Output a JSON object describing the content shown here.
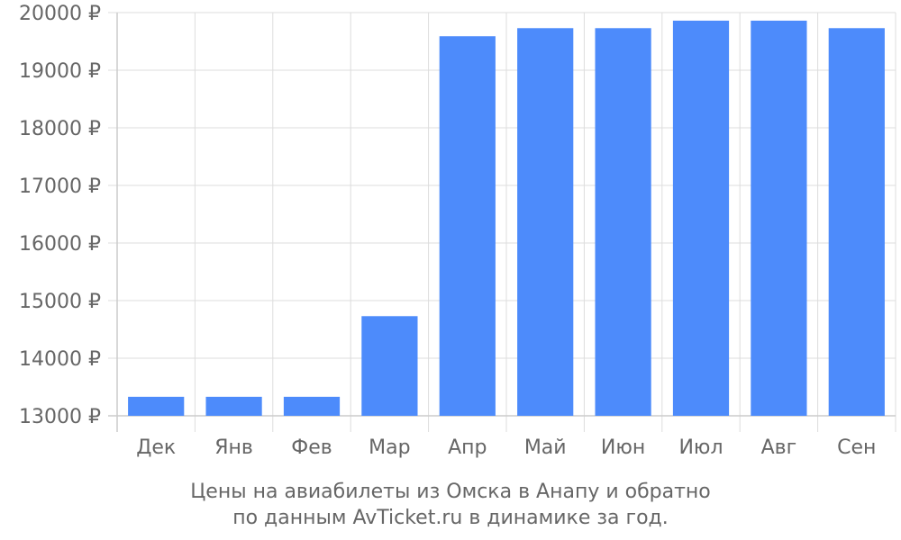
{
  "chart_data": {
    "type": "bar",
    "categories": [
      "Дек",
      "Янв",
      "Фев",
      "Мар",
      "Апр",
      "Май",
      "Июн",
      "Июл",
      "Авг",
      "Сен"
    ],
    "values": [
      13330,
      13330,
      13330,
      14730,
      19590,
      19730,
      19730,
      19860,
      19860,
      19730
    ],
    "ylim": [
      13000,
      20000
    ],
    "yticks": [
      13000,
      14000,
      15000,
      16000,
      17000,
      18000,
      19000,
      20000
    ],
    "ytick_labels": [
      "13000 ₽",
      "14000 ₽",
      "15000 ₽",
      "16000 ₽",
      "17000 ₽",
      "18000 ₽",
      "19000 ₽",
      "20000 ₽"
    ],
    "grid": true,
    "bar_color": "#4d8bfb",
    "caption_line1": "Цены на авиабилеты из Омска в Анапу и обратно",
    "caption_line2": "по данным AvTicket.ru в динамике за год."
  }
}
